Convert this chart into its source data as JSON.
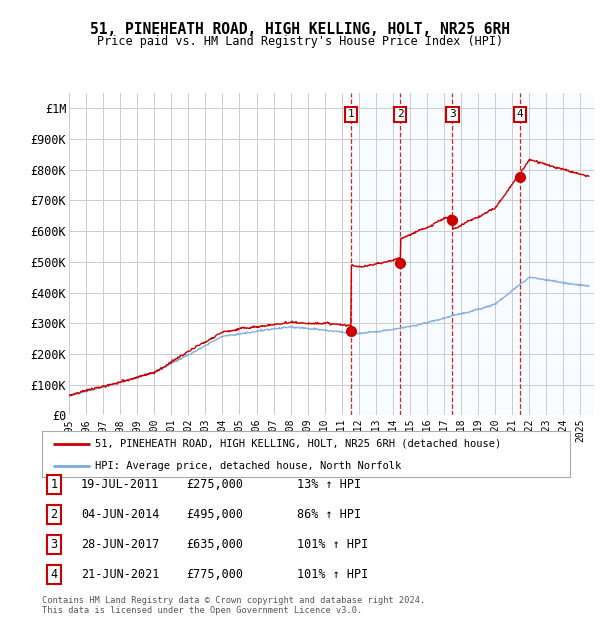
{
  "title_line1": "51, PINEHEATH ROAD, HIGH KELLING, HOLT, NR25 6RH",
  "title_line2": "Price paid vs. HM Land Registry's House Price Index (HPI)",
  "ylim": [
    0,
    1050000
  ],
  "yticks": [
    0,
    100000,
    200000,
    300000,
    400000,
    500000,
    600000,
    700000,
    800000,
    900000,
    1000000
  ],
  "ytick_labels": [
    "£0",
    "£100K",
    "£200K",
    "£300K",
    "£400K",
    "£500K",
    "£600K",
    "£700K",
    "£800K",
    "£900K",
    "£1M"
  ],
  "hpi_color": "#7aaadd",
  "price_color": "#cc0000",
  "bg_color": "#ffffff",
  "grid_color": "#cccccc",
  "shade_color": "#ddeeff",
  "sale_labels": [
    "1",
    "2",
    "3",
    "4"
  ],
  "sale_years": [
    2011.54,
    2014.42,
    2017.49,
    2021.47
  ],
  "sale_prices": [
    275000,
    495000,
    635000,
    775000
  ],
  "sale_info": [
    {
      "num": "1",
      "date": "19-JUL-2011",
      "price": "£275,000",
      "hpi": "13% ↑ HPI"
    },
    {
      "num": "2",
      "date": "04-JUN-2014",
      "price": "£495,000",
      "hpi": "86% ↑ HPI"
    },
    {
      "num": "3",
      "date": "28-JUN-2017",
      "price": "£635,000",
      "hpi": "101% ↑ HPI"
    },
    {
      "num": "4",
      "date": "21-JUN-2021",
      "price": "£775,000",
      "hpi": "101% ↑ HPI"
    }
  ],
  "legend_label_red": "51, PINEHEATH ROAD, HIGH KELLING, HOLT, NR25 6RH (detached house)",
  "legend_label_blue": "HPI: Average price, detached house, North Norfolk",
  "footer": "Contains HM Land Registry data © Crown copyright and database right 2024.\nThis data is licensed under the Open Government Licence v3.0.",
  "x_start_year": 1995,
  "x_end_year": 2025
}
